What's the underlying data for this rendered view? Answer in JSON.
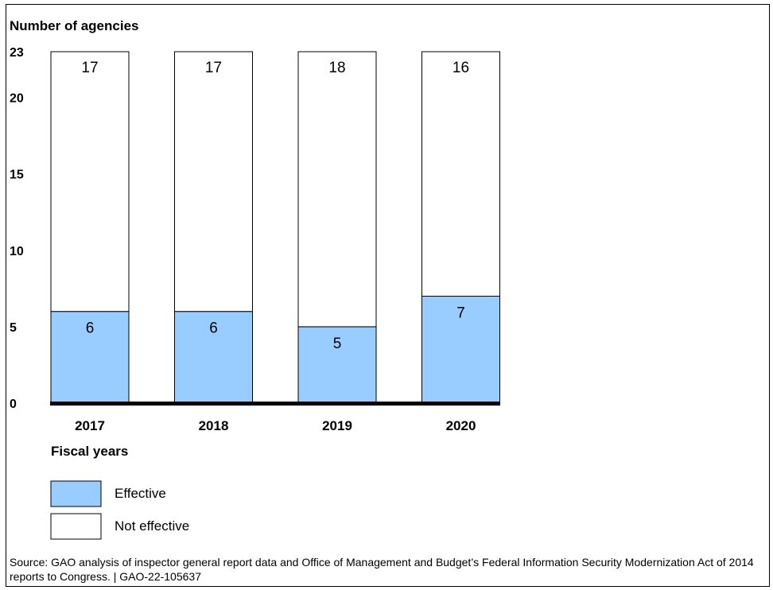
{
  "chart_data": {
    "type": "bar",
    "stacked": true,
    "ylabel": "Number of agencies",
    "xlabel": "Fiscal years",
    "ylim": [
      0,
      23
    ],
    "yticks": [
      0,
      5,
      10,
      15,
      20,
      23
    ],
    "categories": [
      "2017",
      "2018",
      "2019",
      "2020"
    ],
    "series": [
      {
        "name": "Effective",
        "values": [
          6,
          6,
          5,
          7
        ],
        "color": "#99ccff"
      },
      {
        "name": "Not effective",
        "values": [
          17,
          17,
          18,
          16
        ],
        "color": "#ffffff"
      }
    ],
    "legend_position": "bottom-left",
    "grid": false
  },
  "source": "Source: GAO analysis of inspector general report data and Office of Management and Budget’s Federal Information Security Modernization Act of 2014 reports to Congress.  |  GAO-22-105637"
}
